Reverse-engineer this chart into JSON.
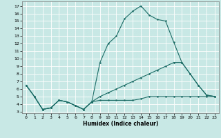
{
  "bg_color": "#c8e8e5",
  "grid_color": "#ffffff",
  "line_color": "#1a6b65",
  "xlabel": "Humidex (Indice chaleur)",
  "xlim": [
    -0.5,
    23.5
  ],
  "ylim": [
    2.8,
    17.6
  ],
  "yticks": [
    3,
    4,
    5,
    6,
    7,
    8,
    9,
    10,
    11,
    12,
    13,
    14,
    15,
    16,
    17
  ],
  "xticks": [
    0,
    1,
    2,
    3,
    4,
    5,
    6,
    7,
    8,
    9,
    10,
    11,
    12,
    13,
    14,
    15,
    16,
    17,
    18,
    19,
    20,
    21,
    22,
    23
  ],
  "line1_x": [
    0,
    1,
    2,
    3,
    4,
    5,
    6,
    7,
    8,
    9,
    10,
    11,
    12,
    13,
    14,
    15,
    16,
    17,
    18,
    19,
    20,
    21,
    22,
    23
  ],
  "line1_y": [
    6.5,
    5.0,
    3.3,
    3.5,
    4.5,
    4.3,
    3.8,
    3.3,
    4.3,
    9.5,
    12.0,
    13.0,
    15.3,
    16.3,
    17.0,
    15.8,
    15.2,
    15.0,
    12.2,
    9.5,
    8.0,
    6.5,
    5.2,
    5.0
  ],
  "line2_x": [
    0,
    1,
    2,
    3,
    4,
    5,
    6,
    7,
    8,
    9,
    10,
    11,
    12,
    13,
    14,
    15,
    16,
    17,
    18,
    19,
    20,
    21,
    22,
    23
  ],
  "line2_y": [
    6.5,
    5.0,
    3.3,
    3.5,
    4.5,
    4.3,
    3.8,
    3.3,
    4.3,
    5.0,
    5.5,
    6.0,
    6.5,
    7.0,
    7.5,
    8.0,
    8.5,
    9.0,
    9.5,
    9.5,
    8.0,
    6.5,
    5.2,
    5.0
  ],
  "line3_x": [
    0,
    1,
    2,
    3,
    4,
    5,
    6,
    7,
    8,
    9,
    10,
    11,
    12,
    13,
    14,
    15,
    16,
    17,
    18,
    19,
    20,
    21,
    22,
    23
  ],
  "line3_y": [
    6.5,
    5.0,
    3.3,
    3.5,
    4.5,
    4.3,
    3.8,
    3.3,
    4.3,
    4.5,
    4.5,
    4.5,
    4.5,
    4.5,
    4.7,
    5.0,
    5.0,
    5.0,
    5.0,
    5.0,
    5.0,
    5.0,
    5.0,
    5.0
  ]
}
